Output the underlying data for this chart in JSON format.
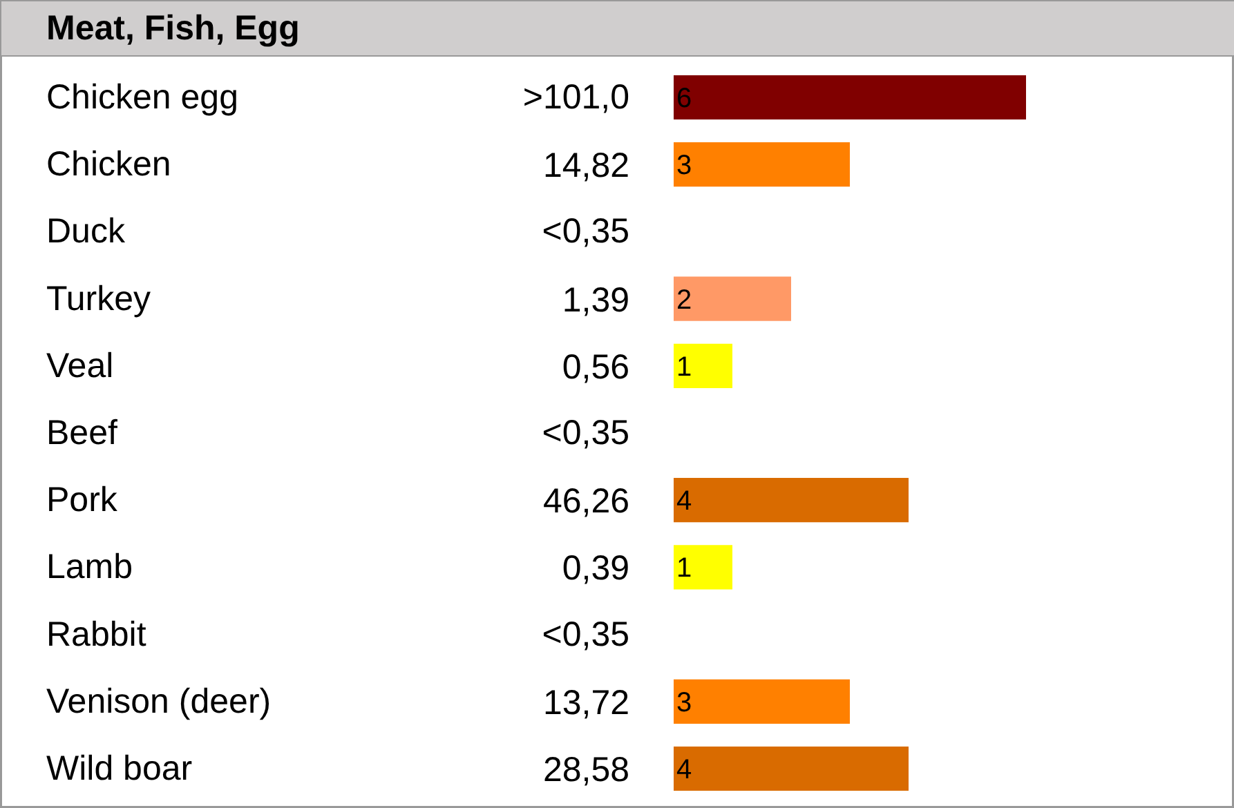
{
  "chart_data": {
    "type": "bar",
    "orientation": "horizontal",
    "title": "Meat, Fish, Egg",
    "categories": [
      "Chicken egg",
      "Chicken",
      "Duck",
      "Turkey",
      "Veal",
      "Beef",
      "Pork",
      "Lamb",
      "Rabbit",
      "Venison (deer)",
      "Wild boar"
    ],
    "values": [
      6,
      3,
      null,
      2,
      1,
      null,
      4,
      1,
      null,
      3,
      4
    ],
    "colors": [
      "#800000",
      "#ff8000",
      null,
      "#ff9966",
      "#ffff00",
      null,
      "#d96b00",
      "#ffff00",
      null,
      "#ff8000",
      "#d96b00"
    ],
    "data_labels": true,
    "grid": false,
    "annotations": [
      ">101,0",
      "14,82",
      "<0,35",
      "1,39",
      "0,56",
      "<0,35",
      "46,26",
      "0,39",
      "<0,35",
      "13,72",
      "28,58"
    ]
  }
}
